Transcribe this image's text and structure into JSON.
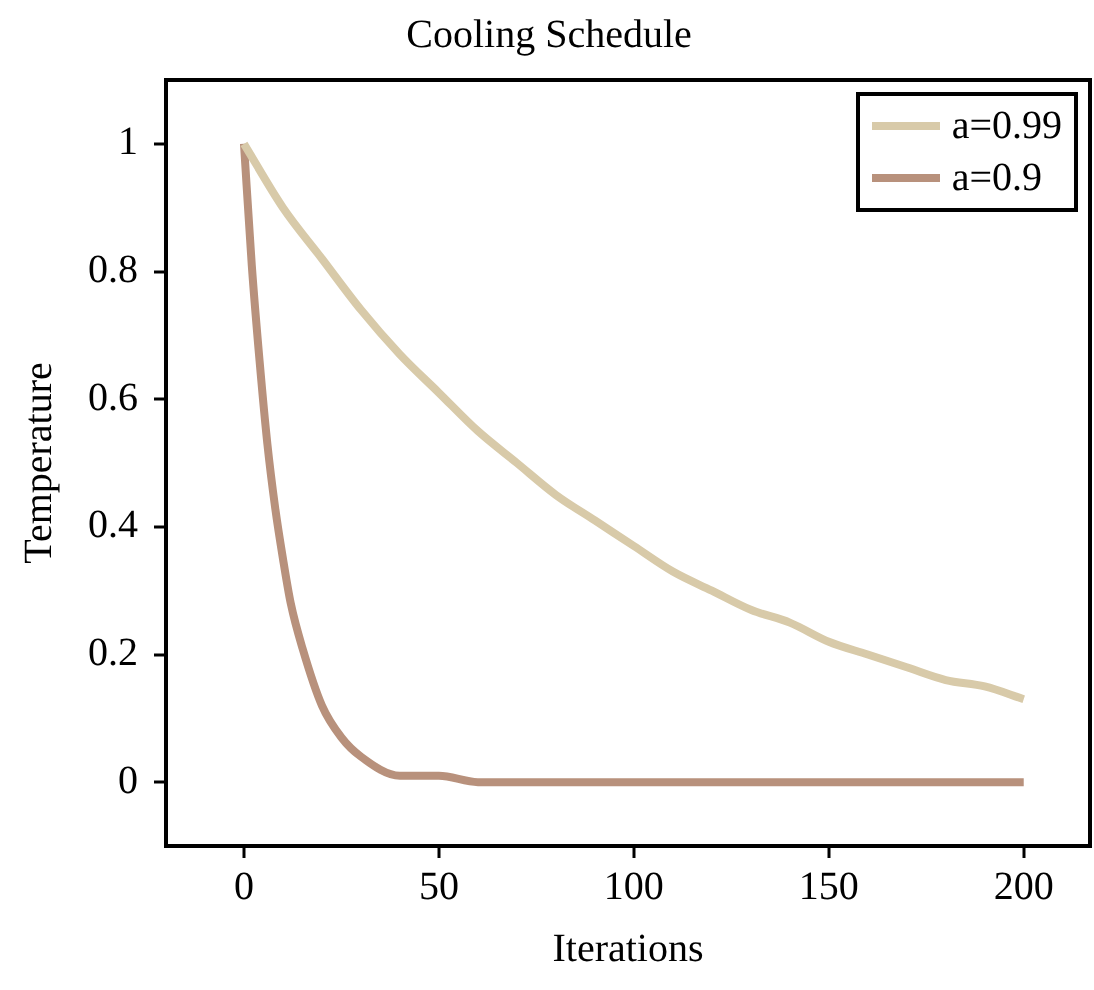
{
  "chart_data": {
    "type": "line",
    "title": "Cooling Schedule",
    "xlabel": "Iterations",
    "ylabel": "Temperature",
    "xlim": [
      -20,
      217
    ],
    "xticks": [
      0,
      50,
      100,
      150,
      200
    ],
    "ylim": [
      -0.1,
      1.1
    ],
    "yticks": [
      0,
      0.2,
      0.4,
      0.6,
      0.8,
      1
    ],
    "grid": false,
    "legend": "top right",
    "marker": "none",
    "line_style": "solid",
    "series": [
      {
        "name": "a=0.99",
        "color": "#d8caa9",
        "x": [
          0,
          10,
          20,
          30,
          40,
          50,
          60,
          70,
          80,
          90,
          100,
          110,
          120,
          130,
          140,
          150,
          160,
          170,
          180,
          190,
          200
        ],
        "values": [
          1,
          0.9,
          0.82,
          0.74,
          0.67,
          0.61,
          0.55,
          0.5,
          0.45,
          0.41,
          0.37,
          0.33,
          0.3,
          0.27,
          0.25,
          0.22,
          0.2,
          0.18,
          0.16,
          0.15,
          0.13
        ]
      },
      {
        "name": "a=0.9",
        "color": "#b8917c",
        "x": [
          0,
          2,
          4,
          6,
          8,
          10,
          12,
          15,
          20,
          25,
          30,
          40,
          50,
          60,
          80,
          100,
          150,
          200
        ],
        "values": [
          1,
          0.81,
          0.66,
          0.53,
          0.43,
          0.35,
          0.28,
          0.21,
          0.12,
          0.07,
          0.04,
          0.01,
          0.01,
          0,
          0,
          0,
          0,
          0
        ]
      }
    ]
  }
}
